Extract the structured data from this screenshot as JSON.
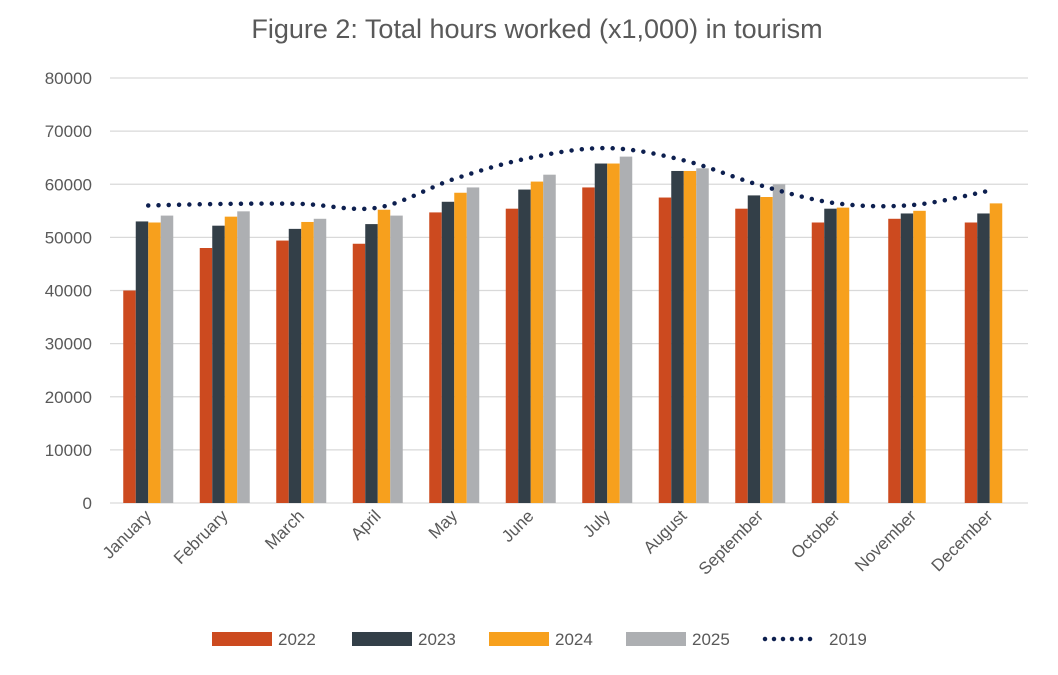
{
  "chart_data": {
    "type": "bar",
    "title": "Figure 2: Total hours worked (x1,000) in tourism",
    "xlabel": "",
    "ylabel": "",
    "ylim": [
      0,
      80000
    ],
    "yticks": [
      0,
      10000,
      20000,
      30000,
      40000,
      50000,
      60000,
      70000,
      80000
    ],
    "grid": true,
    "legend_position": "bottom",
    "categories": [
      "January",
      "February",
      "March",
      "April",
      "May",
      "June",
      "July",
      "August",
      "September",
      "October",
      "November",
      "December"
    ],
    "series": [
      {
        "name": "2022",
        "type": "bar",
        "color": "#CC4A1F",
        "values": [
          40000,
          48000,
          49400,
          48800,
          54700,
          55400,
          59400,
          57500,
          55400,
          52800,
          53500,
          52800
        ]
      },
      {
        "name": "2023",
        "type": "bar",
        "color": "#333F48",
        "values": [
          53000,
          52200,
          51600,
          52500,
          56700,
          59000,
          63900,
          62500,
          57900,
          55400,
          54500,
          54500
        ]
      },
      {
        "name": "2024",
        "type": "bar",
        "color": "#F7A01D",
        "values": [
          52800,
          53900,
          52900,
          55200,
          58400,
          60500,
          63900,
          62500,
          57600,
          55600,
          55000,
          56400
        ]
      },
      {
        "name": "2025",
        "type": "bar",
        "color": "#ADAFB2",
        "values": [
          54100,
          54900,
          53500,
          54100,
          59400,
          61800,
          65200,
          63000,
          60000,
          null,
          null,
          null
        ]
      },
      {
        "name": "2019",
        "type": "line",
        "style": "dotted",
        "color": "#0D1F4F",
        "values": [
          56000,
          56300,
          56300,
          55600,
          61000,
          65000,
          66800,
          64500,
          59800,
          56400,
          56100,
          58800
        ]
      }
    ]
  }
}
